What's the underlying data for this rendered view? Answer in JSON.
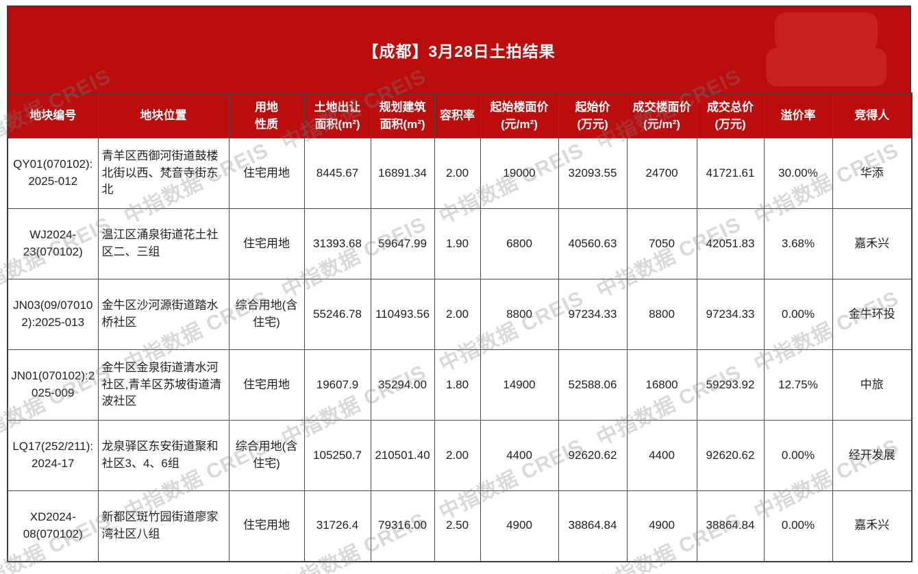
{
  "banner": {
    "title": "【成都】3月28日土拍结果"
  },
  "watermark": "中指数据 CREIS",
  "colors": {
    "banner_red": "#bb0d0e",
    "logo_patch_red": "#c8201d",
    "grid_line": "#4a4a4a",
    "body_text": "#1f1f1f",
    "header_text": "#ffffff"
  },
  "table": {
    "columns": [
      {
        "id": "plot-id",
        "label": "地块编号",
        "align": "center"
      },
      {
        "id": "location",
        "label": "地块位置",
        "align": "left"
      },
      {
        "id": "land-use",
        "label": "用地\n性质",
        "align": "center"
      },
      {
        "id": "transfer-area",
        "label": "土地出让\n面积(m²)",
        "align": "center"
      },
      {
        "id": "planned-area",
        "label": "规划建筑\n面积(m²)",
        "align": "center"
      },
      {
        "id": "plot-ratio",
        "label": "容积率",
        "align": "center"
      },
      {
        "id": "start-floor-price",
        "label": "起始楼面价\n(元/m²)",
        "align": "center"
      },
      {
        "id": "start-price",
        "label": "起始价\n(万元)",
        "align": "center"
      },
      {
        "id": "deal-floor-price",
        "label": "成交楼面价\n(元/m²)",
        "align": "center"
      },
      {
        "id": "deal-total-price",
        "label": "成交总价\n(万元)",
        "align": "center"
      },
      {
        "id": "premium-rate",
        "label": "溢价率",
        "align": "center"
      },
      {
        "id": "winner",
        "label": "竞得人",
        "align": "center"
      }
    ],
    "rows": [
      [
        "QY01(070102):2025-012",
        "青羊区西御河街道鼓楼北街以西、梵音寺街东北",
        "住宅用地",
        "8445.67",
        "16891.34",
        "2.00",
        "19000",
        "32093.55",
        "24700",
        "41721.61",
        "30.00%",
        "华添"
      ],
      [
        "WJ2024-23(070102)",
        "温江区涌泉街道花土社区二、三组",
        "住宅用地",
        "31393.68",
        "59647.99",
        "1.90",
        "6800",
        "40560.63",
        "7050",
        "42051.83",
        "3.68%",
        "嘉禾兴"
      ],
      [
        "JN03(09/070102):2025-013",
        "金牛区沙河源街道踏水桥社区",
        "综合用地(含住宅)",
        "55246.78",
        "110493.56",
        "2.00",
        "8800",
        "97234.33",
        "8800",
        "97234.33",
        "0.00%",
        "金牛环投"
      ],
      [
        "JN01(070102):2025-009",
        "金牛区金泉街道清水河社区,青羊区苏坡街道清波社区",
        "住宅用地",
        "19607.9",
        "35294.00",
        "1.80",
        "14900",
        "52588.06",
        "16800",
        "59293.92",
        "12.75%",
        "中旅"
      ],
      [
        "LQ17(252/211):2024-17",
        "龙泉驿区东安街道聚和社区3、4、6组",
        "综合用地(含住宅)",
        "105250.7",
        "210501.40",
        "2.00",
        "4400",
        "92620.62",
        "4400",
        "92620.62",
        "0.00%",
        "经开发展"
      ],
      [
        "XD2024-08(070102)",
        "新都区斑竹园街道廖家湾社区八组",
        "住宅用地",
        "31726.4",
        "79316.00",
        "2.50",
        "4900",
        "38864.84",
        "4900",
        "38864.84",
        "0.00%",
        "嘉禾兴"
      ]
    ]
  }
}
